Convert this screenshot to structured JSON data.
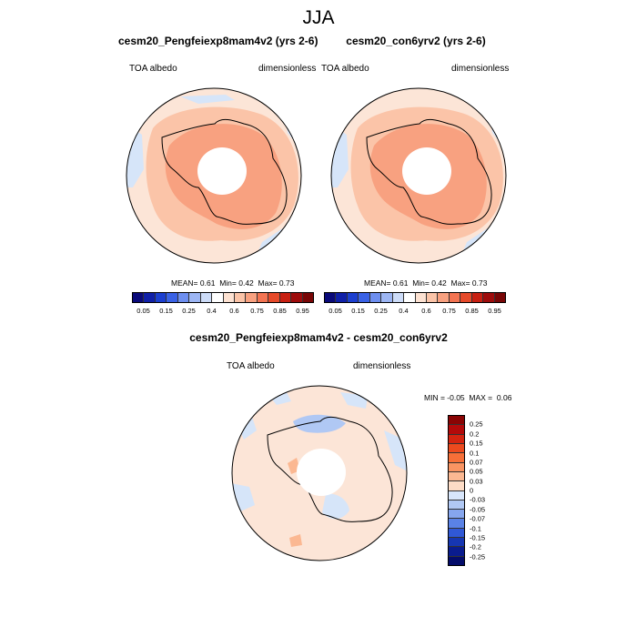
{
  "title": "JJA",
  "panels": [
    {
      "title": "cesm20_Pengfeiexp8mam4v2 (yrs 2-6)",
      "variable": "TOA albedo",
      "units": "dimensionless",
      "stats": {
        "mean_label": "MEAN=",
        "mean": "0.61",
        "min_label": "Min=",
        "min": "0.42",
        "max_label": "Max=",
        "max": "0.73"
      }
    },
    {
      "title": "cesm20_con6yrv2 (yrs 2-6)",
      "variable": "TOA albedo",
      "units": "dimensionless",
      "stats": {
        "mean_label": "MEAN=",
        "mean": "0.61",
        "min_label": "Min=",
        "min": "0.42",
        "max_label": "Max=",
        "max": "0.73"
      }
    }
  ],
  "abs_colorbar": {
    "ticks": [
      "0.05",
      "0.15",
      "0.25",
      "0.4",
      "0.6",
      "0.75",
      "0.85",
      "0.95"
    ],
    "colors": [
      "#0a0a7a",
      "#1020a8",
      "#1c3fd0",
      "#3a62e6",
      "#6e8ff0",
      "#9db6f4",
      "#cddcf8",
      "#ffffff",
      "#fde2d2",
      "#fbc4a8",
      "#f8a180",
      "#f37452",
      "#e64a2a",
      "#c82012",
      "#9e0c0c",
      "#780606"
    ]
  },
  "diff_panel": {
    "title": "cesm20_Pengfeiexp8mam4v2 - cesm20_con6yrv2",
    "variable": "TOA albedo",
    "units": "dimensionless",
    "stats": {
      "min_label": "MIN =",
      "min": "-0.05",
      "max_label": "MAX =",
      "max": "0.06"
    }
  },
  "diff_colorbar": {
    "ticks": [
      "0.25",
      "0.2",
      "0.15",
      "0.1",
      "0.07",
      "0.05",
      "0.03",
      "0",
      "-0.03",
      "-0.05",
      "-0.07",
      "-0.1",
      "-0.15",
      "-0.2",
      "-0.25"
    ],
    "colors": [
      "#8a0404",
      "#b30a0a",
      "#d42410",
      "#ec4a1e",
      "#f66f38",
      "#f99462",
      "#fbb892",
      "#fddcc6",
      "#d8e6fb",
      "#b0c8f4",
      "#86a6ee",
      "#5a82e6",
      "#3058d6",
      "#1636b2",
      "#0a1c8e",
      "#040c6a"
    ]
  }
}
